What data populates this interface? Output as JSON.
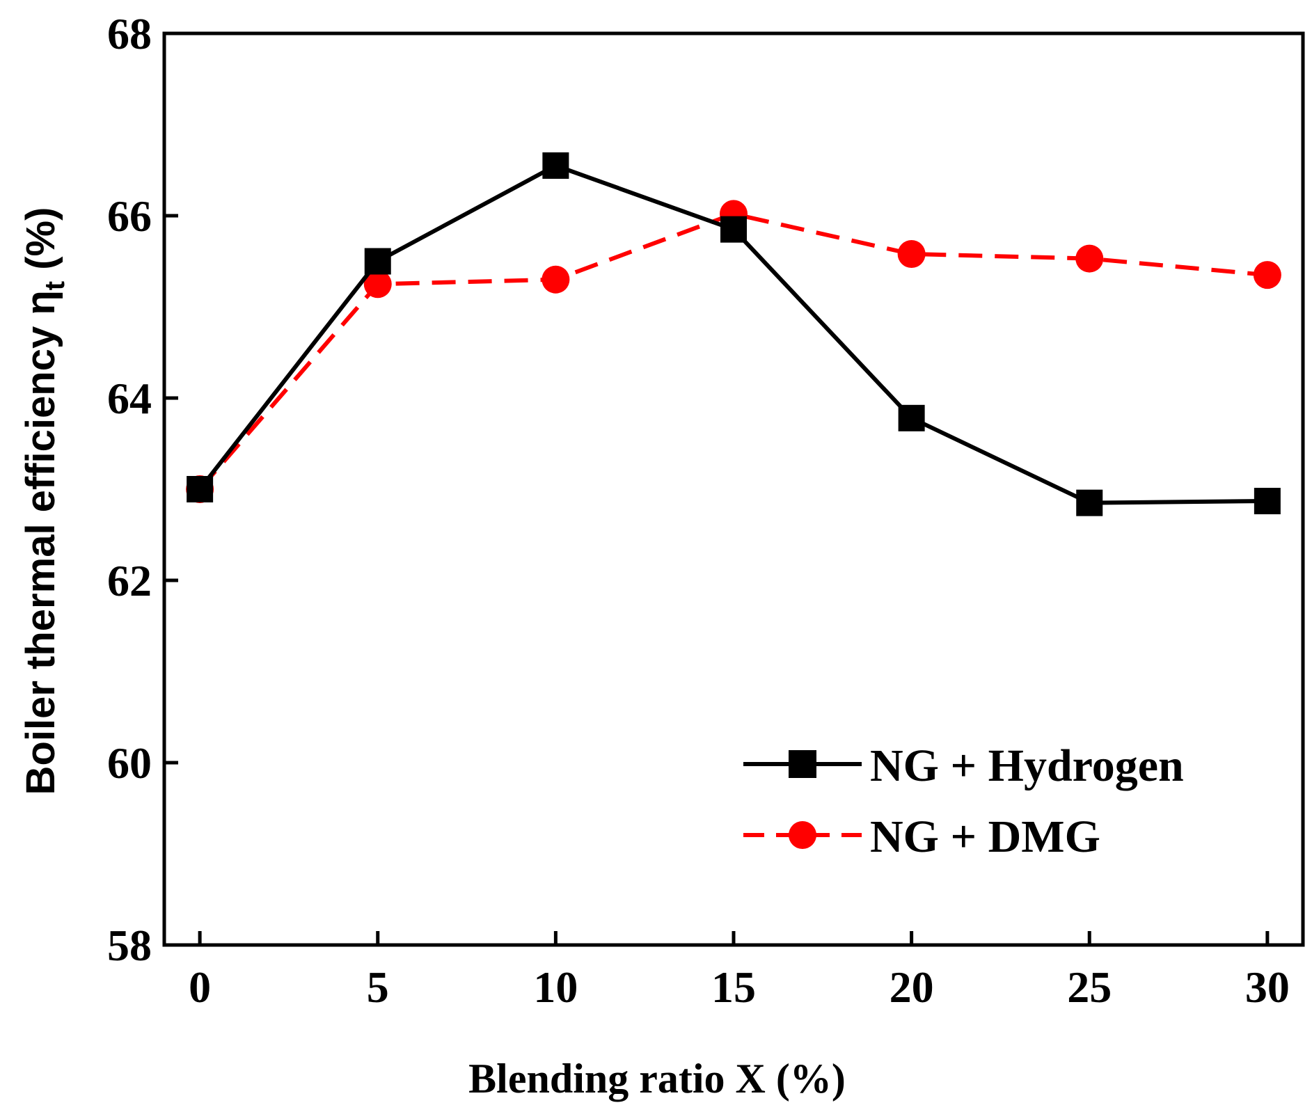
{
  "chart_data": {
    "type": "line",
    "title": "",
    "xlabel": "Blending ratio X (%)",
    "ylabel": {
      "main": "Boiler thermal efficiency η",
      "subscript": "t",
      "suffix": " (%)"
    },
    "x": [
      0,
      5,
      10,
      15,
      20,
      25,
      30
    ],
    "xticks": [
      "0",
      "5",
      "10",
      "15",
      "20",
      "25",
      "30"
    ],
    "xlim": [
      -1,
      31
    ],
    "yticks": [
      "58",
      "60",
      "62",
      "64",
      "66",
      "68"
    ],
    "ylim": [
      58,
      68
    ],
    "grid": false,
    "legend_position": "lower-right",
    "series": [
      {
        "name": "NG + Hydrogen",
        "values": [
          63.0,
          65.5,
          66.55,
          65.85,
          63.78,
          62.85,
          62.87
        ],
        "color": "#000000",
        "line_style": "solid",
        "marker": "square"
      },
      {
        "name": "NG + DMG",
        "values": [
          63.0,
          65.25,
          65.3,
          66.02,
          65.58,
          65.53,
          65.35
        ],
        "color": "#ff0000",
        "line_style": "dashed",
        "marker": "circle"
      }
    ]
  }
}
